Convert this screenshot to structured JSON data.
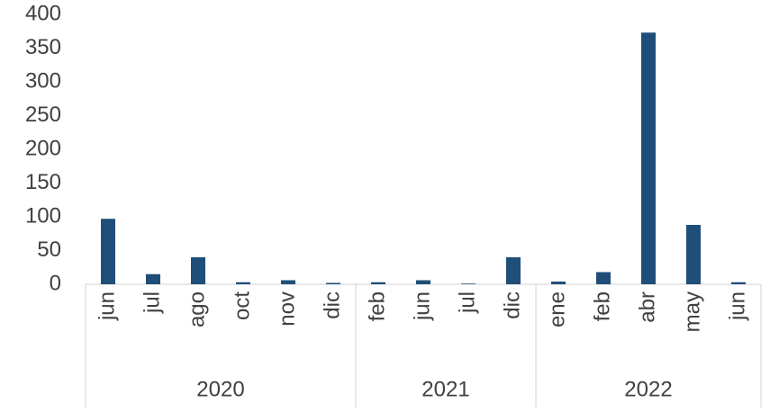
{
  "chart_data": {
    "type": "bar",
    "color": "#1f4e79",
    "groups": [
      {
        "name": "2020",
        "categories": [
          "jun",
          "jul",
          "ago",
          "oct",
          "nov",
          "dic"
        ],
        "values": [
          97,
          15,
          40,
          3,
          6,
          2
        ]
      },
      {
        "name": "2021",
        "categories": [
          "feb",
          "jun",
          "jul",
          "dic"
        ],
        "values": [
          3,
          6,
          1,
          40
        ]
      },
      {
        "name": "2022",
        "categories": [
          "ene",
          "feb",
          "abr",
          "may",
          "jun"
        ],
        "values": [
          4,
          18,
          373,
          88,
          3
        ]
      }
    ],
    "ylim": [
      0,
      400
    ],
    "yticks": [
      0,
      50,
      100,
      150,
      200,
      250,
      300,
      350,
      400
    ],
    "grid": false
  }
}
